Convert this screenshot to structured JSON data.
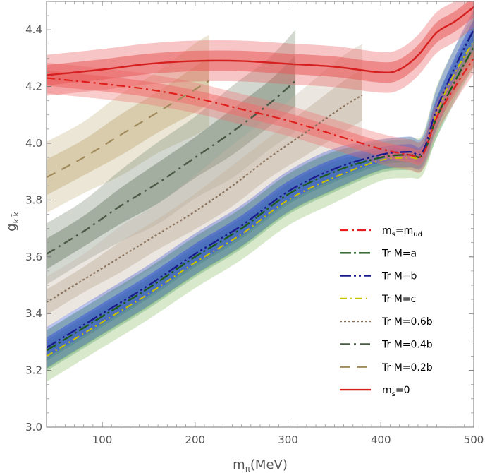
{
  "chart_data": {
    "type": "line",
    "xlabel_main": "m",
    "xlabel_sub": "π",
    "xlabel_unit": "(MeV)",
    "ylabel_main": "g",
    "ylabel_sub": "k k̄",
    "xlim": [
      40,
      500
    ],
    "ylim": [
      3.0,
      4.5
    ],
    "xticks": [
      100,
      200,
      300,
      400,
      500
    ],
    "yticks": [
      3.0,
      3.2,
      3.4,
      3.6,
      3.8,
      4.0,
      4.2,
      4.4
    ],
    "legend_position": "lower-right",
    "series": [
      {
        "name": "Tr M=0.2b",
        "label_main": "Tr M=0.2b",
        "label_sub": "",
        "color": "#a08a5c",
        "band_color": "#c9b68a",
        "dash": "14,10",
        "width": 2.2,
        "x": [
          40,
          80,
          120,
          160,
          200,
          215
        ],
        "y": [
          3.88,
          3.95,
          4.03,
          4.11,
          4.19,
          4.22
        ],
        "band": [
          0.07,
          0.07,
          0.08,
          0.08,
          0.09,
          0.09
        ]
      },
      {
        "name": "Tr M=0.4b",
        "label_main": "Tr M=0.4b",
        "label_sub": "",
        "color": "#4a5a46",
        "band_color": "#7d8c78",
        "dash": "14,6,3,6",
        "width": 2.4,
        "x": [
          40,
          80,
          120,
          160,
          200,
          240,
          280,
          308
        ],
        "y": [
          3.61,
          3.69,
          3.78,
          3.86,
          3.95,
          4.04,
          4.14,
          4.22
        ],
        "band": [
          0.06,
          0.06,
          0.07,
          0.08,
          0.08,
          0.09,
          0.09,
          0.1
        ]
      },
      {
        "name": "Tr M=0.6b",
        "label_main": "Tr M=0.6b",
        "label_sub": "",
        "color": "#8c7560",
        "band_color": "#c8b8a8",
        "dash": "3,3",
        "width": 2.2,
        "x": [
          40,
          80,
          120,
          160,
          200,
          240,
          280,
          320,
          360,
          380
        ],
        "y": [
          3.44,
          3.52,
          3.6,
          3.68,
          3.76,
          3.85,
          3.95,
          4.04,
          4.13,
          4.17
        ],
        "band": [
          0.05,
          0.05,
          0.06,
          0.06,
          0.07,
          0.08,
          0.08,
          0.09,
          0.1,
          0.1
        ]
      },
      {
        "name": "Tr M=c",
        "label_main": "Tr M=c",
        "label_sub": "",
        "color": "#c8c200",
        "band_color": "#8fbf6a",
        "dash": "10,5,2,5",
        "width": 2.2,
        "x": [
          40,
          100,
          150,
          200,
          250,
          300,
          350,
          400,
          430,
          445,
          460,
          480,
          500
        ],
        "y": [
          3.25,
          3.37,
          3.47,
          3.58,
          3.68,
          3.8,
          3.88,
          3.94,
          3.95,
          3.96,
          4.11,
          4.25,
          4.36
        ],
        "band": [
          0.05,
          0.05,
          0.05,
          0.05,
          0.05,
          0.05,
          0.05,
          0.04,
          0.04,
          0.04,
          0.05,
          0.05,
          0.05
        ]
      },
      {
        "name": "Tr M=a",
        "label_main": "Tr M=a",
        "label_sub": "",
        "color": "#1f5a1f",
        "band_color": "#5aa06a",
        "dash": "16,4,3,4",
        "width": 2.4,
        "x": [
          40,
          100,
          150,
          200,
          250,
          300,
          350,
          400,
          430,
          445,
          460,
          480,
          500
        ],
        "y": [
          3.27,
          3.39,
          3.49,
          3.6,
          3.7,
          3.82,
          3.9,
          3.95,
          3.96,
          3.96,
          4.09,
          4.22,
          4.34
        ],
        "band": [
          0.04,
          0.04,
          0.04,
          0.04,
          0.04,
          0.04,
          0.04,
          0.03,
          0.03,
          0.03,
          0.04,
          0.04,
          0.04
        ]
      },
      {
        "name": "Tr M=b",
        "label_main": "Tr M=b",
        "label_sub": "",
        "color": "#1a1a8c",
        "band_color": "#3b55d8",
        "dash": "16,4,3,4,3,4",
        "width": 2.4,
        "x": [
          40,
          100,
          150,
          200,
          250,
          300,
          350,
          400,
          430,
          445,
          460,
          480,
          500
        ],
        "y": [
          3.28,
          3.4,
          3.5,
          3.61,
          3.71,
          3.83,
          3.91,
          3.96,
          3.97,
          3.97,
          4.12,
          4.27,
          4.4
        ],
        "band": [
          0.04,
          0.04,
          0.04,
          0.04,
          0.04,
          0.04,
          0.04,
          0.03,
          0.03,
          0.03,
          0.04,
          0.04,
          0.04
        ]
      },
      {
        "name": "m_s=m_ud",
        "label_main": "m",
        "label_sub": "s",
        "label_eq": "=m",
        "label_sub2": "ud",
        "color": "#e0201c",
        "band_color": "#f07070",
        "dash": "12,5,3,5",
        "width": 2.2,
        "x": [
          40,
          100,
          150,
          200,
          250,
          300,
          350,
          400,
          430,
          445,
          460,
          480,
          500
        ],
        "y": [
          4.23,
          4.21,
          4.19,
          4.16,
          4.12,
          4.08,
          4.03,
          3.98,
          3.96,
          3.96,
          4.09,
          4.2,
          4.3
        ],
        "band": [
          0.03,
          0.03,
          0.03,
          0.03,
          0.03,
          0.03,
          0.03,
          0.03,
          0.03,
          0.03,
          0.03,
          0.03,
          0.03
        ]
      },
      {
        "name": "m_s=0",
        "label_main": "m",
        "label_sub": "s",
        "label_eq": "=0",
        "label_sub2": "",
        "color": "#d62020",
        "band_color": "#e85a5a",
        "dash": "",
        "width": 2.4,
        "x": [
          40,
          100,
          150,
          200,
          250,
          300,
          350,
          400,
          420,
          440,
          460,
          480,
          500
        ],
        "y": [
          4.24,
          4.26,
          4.28,
          4.29,
          4.29,
          4.28,
          4.27,
          4.25,
          4.26,
          4.31,
          4.39,
          4.43,
          4.48
        ],
        "band": [
          0.04,
          0.04,
          0.04,
          0.04,
          0.04,
          0.04,
          0.04,
          0.04,
          0.04,
          0.04,
          0.04,
          0.04,
          0.04
        ]
      }
    ],
    "legend_order": [
      "m_s=m_ud",
      "Tr M=a",
      "Tr M=b",
      "Tr M=c",
      "Tr M=0.6b",
      "Tr M=0.4b",
      "Tr M=0.2b",
      "m_s=0"
    ]
  }
}
